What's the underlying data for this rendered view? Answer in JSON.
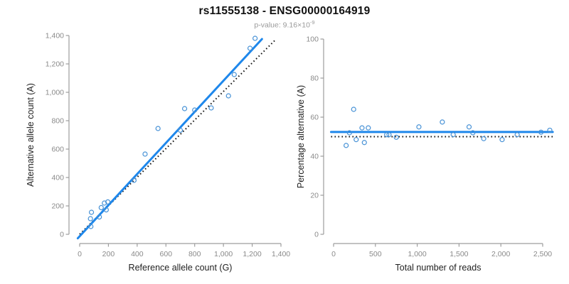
{
  "header": {
    "title": "rs11555138 - ENSG00000164919",
    "subtitle_text": "p-value: 9.16×10",
    "subtitle_exponent": "-9"
  },
  "colors": {
    "fit_line_blue": "#1e87eb",
    "point_blue": "#4691d6",
    "dotted_black": "#141414",
    "axis_gray": "#9d9d9d",
    "tick_label_gray": "#8a8a8a",
    "axis_title_dark": "#222222",
    "title_dark": "#111111",
    "subtitle_gray": "#9a9a9a"
  },
  "chart_data": [
    {
      "type": "scatter",
      "name": "allele-counts",
      "xlabel": "Reference allele count (G)",
      "ylabel": "Alternative allele count (A)",
      "xlim": [
        0,
        1400
      ],
      "ylim": [
        0,
        1400
      ],
      "xticks": [
        0,
        200,
        400,
        600,
        800,
        1000,
        1200,
        1400
      ],
      "yticks": [
        0,
        200,
        400,
        600,
        800,
        1000,
        1200,
        1400
      ],
      "grid": false,
      "legend": "none",
      "points": [
        [
          78,
          55
        ],
        [
          75,
          110
        ],
        [
          82,
          155
        ],
        [
          137,
          122
        ],
        [
          150,
          188
        ],
        [
          185,
          172
        ],
        [
          172,
          220
        ],
        [
          196,
          228
        ],
        [
          378,
          380
        ],
        [
          455,
          565
        ],
        [
          545,
          745
        ],
        [
          700,
          733
        ],
        [
          730,
          885
        ],
        [
          800,
          875
        ],
        [
          915,
          890
        ],
        [
          1035,
          975
        ],
        [
          1075,
          1125
        ],
        [
          1185,
          1310
        ],
        [
          1220,
          1380
        ]
      ],
      "lines": [
        {
          "name": "identity-line",
          "style": "dotted",
          "x": [
            0,
            1360
          ],
          "y": [
            0,
            1368
          ]
        },
        {
          "name": "regression-line",
          "style": "solid",
          "x": [
            -13,
            1268
          ],
          "y": [
            -28,
            1375
          ]
        }
      ]
    },
    {
      "type": "scatter",
      "name": "percentage-alternative",
      "xlabel": "Total number of reads",
      "ylabel": "Percentage alternative (A)",
      "xlim": [
        0,
        2500
      ],
      "ylim": [
        0,
        100
      ],
      "xticks": [
        0,
        500,
        1000,
        1500,
        2000,
        2500
      ],
      "yticks": [
        0,
        20,
        40,
        60,
        80,
        100
      ],
      "grid": false,
      "legend": "none",
      "points": [
        [
          150,
          45.5
        ],
        [
          190,
          52
        ],
        [
          240,
          64
        ],
        [
          270,
          48.5
        ],
        [
          340,
          54.5
        ],
        [
          368,
          47
        ],
        [
          415,
          54.5
        ],
        [
          635,
          51
        ],
        [
          663,
          51
        ],
        [
          750,
          49.7
        ],
        [
          1020,
          55
        ],
        [
          1300,
          57.5
        ],
        [
          1430,
          51
        ],
        [
          1620,
          55
        ],
        [
          1665,
          52
        ],
        [
          1795,
          49
        ],
        [
          2015,
          48.5
        ],
        [
          2195,
          51
        ],
        [
          2480,
          52.3
        ],
        [
          2585,
          53.3
        ]
      ],
      "lines": [
        {
          "name": "expected-line",
          "style": "dotted",
          "x": [
            -30,
            2620
          ],
          "y": [
            50,
            50
          ]
        },
        {
          "name": "fit-line",
          "style": "solid",
          "x": [
            -30,
            2620
          ],
          "y": [
            52.4,
            52.4
          ]
        }
      ]
    }
  ]
}
